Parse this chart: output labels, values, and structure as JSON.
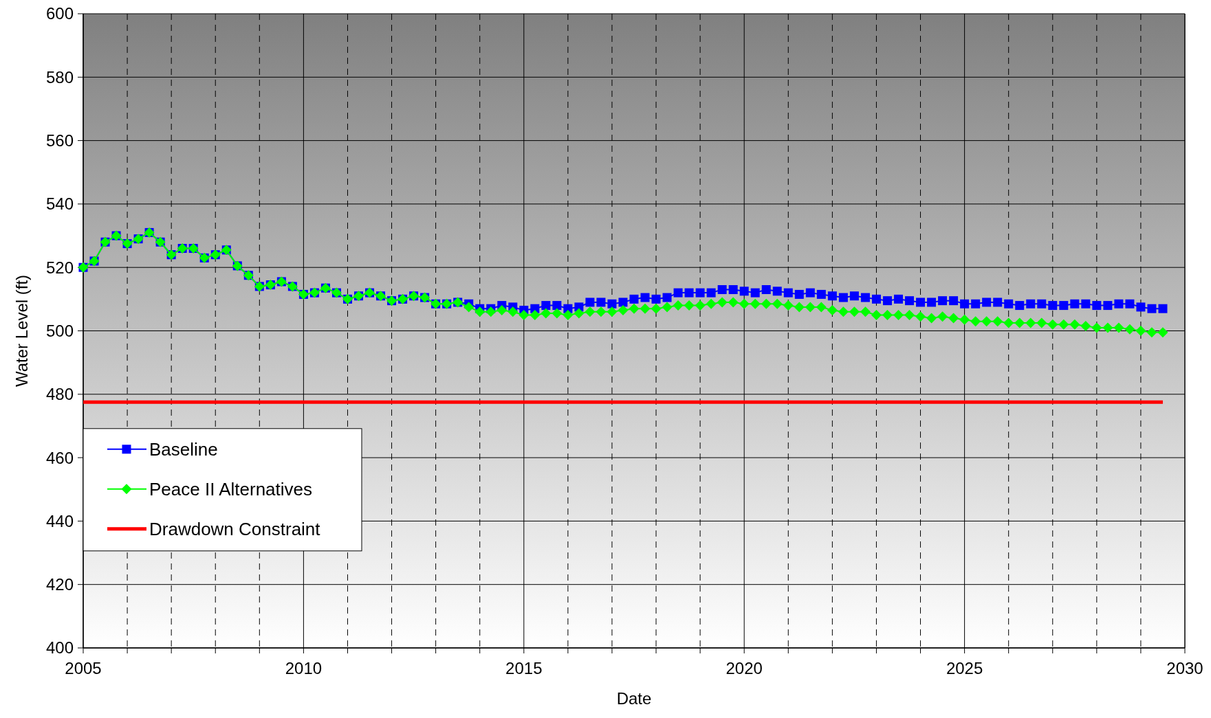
{
  "chart_data": {
    "type": "line",
    "xlabel": "Date",
    "ylabel": "Water Level (ft)",
    "x": [
      2005,
      2005.25,
      2005.5,
      2005.75,
      2006,
      2006.25,
      2006.5,
      2006.75,
      2007,
      2007.25,
      2007.5,
      2007.75,
      2008,
      2008.25,
      2008.5,
      2008.75,
      2009,
      2009.25,
      2009.5,
      2009.75,
      2010,
      2010.25,
      2010.5,
      2010.75,
      2011,
      2011.25,
      2011.5,
      2011.75,
      2012,
      2012.25,
      2012.5,
      2012.75,
      2013,
      2013.25,
      2013.5,
      2013.75,
      2014,
      2014.25,
      2014.5,
      2014.75,
      2015,
      2015.25,
      2015.5,
      2015.75,
      2016,
      2016.25,
      2016.5,
      2016.75,
      2017,
      2017.25,
      2017.5,
      2017.75,
      2018,
      2018.25,
      2018.5,
      2018.75,
      2019,
      2019.25,
      2019.5,
      2019.75,
      2020,
      2020.25,
      2020.5,
      2020.75,
      2021,
      2021.25,
      2021.5,
      2021.75,
      2022,
      2022.25,
      2022.5,
      2022.75,
      2023,
      2023.25,
      2023.5,
      2023.75,
      2024,
      2024.25,
      2024.5,
      2024.75,
      2025,
      2025.25,
      2025.5,
      2025.75,
      2026,
      2026.25,
      2026.5,
      2026.75,
      2027,
      2027.25,
      2027.5,
      2027.75,
      2028,
      2028.25,
      2028.5,
      2028.75,
      2029,
      2029.25,
      2029.5
    ],
    "series": [
      {
        "name": "Baseline",
        "color": "#0000ff",
        "marker": "square",
        "values": [
          520,
          522,
          528,
          530,
          527.5,
          529,
          531,
          528,
          524,
          526,
          526,
          523,
          524,
          525.5,
          520.5,
          517.5,
          514,
          514.5,
          515.5,
          514,
          511.5,
          512,
          513.5,
          512,
          510,
          511,
          512,
          511,
          509.5,
          510,
          511,
          510.5,
          508.5,
          508.5,
          509,
          508.5,
          507,
          507,
          508,
          507.5,
          506.5,
          507,
          508,
          508,
          507,
          507.5,
          509,
          509,
          508.5,
          509,
          510,
          510.5,
          510,
          510.5,
          512,
          512,
          512,
          512,
          513,
          513,
          512.5,
          512,
          513,
          512.5,
          512,
          511.5,
          512,
          511.5,
          511,
          510.5,
          511,
          510.5,
          510,
          509.5,
          510,
          509.5,
          509,
          509,
          509.5,
          509.5,
          508.5,
          508.5,
          509,
          509,
          508.5,
          508,
          508.5,
          508.5,
          508,
          508,
          508.5,
          508.5,
          508,
          508,
          508.5,
          508.5,
          507.5,
          507,
          507
        ]
      },
      {
        "name": "Peace II Alternatives",
        "color": "#00ff00",
        "marker": "diamond",
        "values": [
          520,
          522,
          528,
          530,
          527.5,
          529,
          531,
          528,
          524,
          526,
          526,
          523,
          524,
          525.5,
          520.5,
          517.5,
          514,
          514.5,
          515.5,
          514,
          511.5,
          512,
          513.5,
          512,
          510,
          511,
          512,
          511,
          509.5,
          510,
          511,
          510.5,
          508.5,
          508.5,
          509,
          507.5,
          506,
          506,
          506.5,
          506,
          505,
          505,
          505.5,
          505.5,
          505,
          505.5,
          506,
          506,
          506,
          506.5,
          507,
          507,
          507,
          507.5,
          508,
          508,
          508,
          508.5,
          509,
          509,
          508.5,
          508.5,
          508.5,
          508.5,
          508,
          507.5,
          507.5,
          507.5,
          506.5,
          506,
          506,
          506,
          505,
          505,
          505,
          505,
          504.5,
          504,
          504.5,
          504,
          503.5,
          503,
          503,
          503,
          502.5,
          502.5,
          502.5,
          502.5,
          502,
          502,
          502,
          501.5,
          501,
          501,
          501,
          500.5,
          500,
          499.5,
          499.5
        ]
      },
      {
        "name": "Drawdown Constraint",
        "color": "#ff0000",
        "marker": "none",
        "x": [
          2005,
          2029.5
        ],
        "values": [
          477.5,
          477.5
        ]
      }
    ],
    "xlim": [
      2005,
      2030
    ],
    "xticks": [
      2005,
      {
        "value": 2006,
        "label": null
      },
      {
        "value": 2007,
        "label": null
      },
      {
        "value": 2008,
        "label": null
      },
      {
        "value": 2009,
        "label": null
      },
      2010,
      {
        "value": 2011,
        "label": null
      },
      {
        "value": 2012,
        "label": null
      },
      {
        "value": 2013,
        "label": null
      },
      {
        "value": 2014,
        "label": null
      },
      2015,
      {
        "value": 2016,
        "label": null
      },
      {
        "value": 2017,
        "label": null
      },
      {
        "value": 2018,
        "label": null
      },
      {
        "value": 2019,
        "label": null
      },
      2020,
      {
        "value": 2021,
        "label": null
      },
      {
        "value": 2022,
        "label": null
      },
      {
        "value": 2023,
        "label": null
      },
      {
        "value": 2024,
        "label": null
      },
      2025,
      {
        "value": 2026,
        "label": null
      },
      {
        "value": 2027,
        "label": null
      },
      {
        "value": 2028,
        "label": null
      },
      {
        "value": 2029,
        "label": null
      },
      2030
    ],
    "ylim": [
      400,
      600
    ],
    "yticks": [
      400,
      420,
      440,
      460,
      480,
      500,
      520,
      540,
      560,
      580,
      600
    ],
    "grid": true,
    "legend": "bottom left"
  }
}
